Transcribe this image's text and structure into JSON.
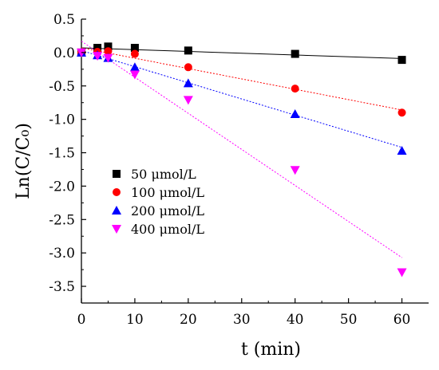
{
  "chart_data": {
    "type": "scatter",
    "xlabel": "t (min)",
    "ylabel": "Ln(C/C₀)",
    "xlim": [
      0,
      65
    ],
    "ylim": [
      -3.75,
      0.5
    ],
    "xticks": [
      0,
      10,
      20,
      30,
      40,
      50,
      60
    ],
    "yticks": [
      0.5,
      0.0,
      -0.5,
      -1.0,
      -1.5,
      -2.0,
      -2.5,
      -3.0,
      -3.5
    ],
    "xtick_labels": [
      "0",
      "10",
      "20",
      "30",
      "40",
      "50",
      "60"
    ],
    "ytick_labels": [
      "0.5",
      "0.0",
      "-0.5",
      "-1.0",
      "-1.5",
      "-2.0",
      "-2.5",
      "-3.0",
      "-3.5"
    ],
    "legend_position": "center-left",
    "series": [
      {
        "name": "50 μmol/L",
        "marker": "square",
        "color": "#000000",
        "line_style": "solid",
        "x": [
          0,
          3,
          5,
          10,
          20,
          40,
          60
        ],
        "y": [
          0.0,
          0.07,
          0.09,
          0.07,
          0.03,
          -0.02,
          -0.11
        ],
        "fit": {
          "x": [
            0,
            60
          ],
          "y": [
            0.07,
            -0.09
          ]
        }
      },
      {
        "name": "100 μmol/L",
        "marker": "circle",
        "color": "#ff0000",
        "line_style": "dotted",
        "x": [
          0,
          3,
          5,
          10,
          20,
          40,
          60
        ],
        "y": [
          0.0,
          0.01,
          0.02,
          -0.02,
          -0.22,
          -0.54,
          -0.9
        ],
        "fit": {
          "x": [
            0,
            60
          ],
          "y": [
            0.07,
            -0.86
          ]
        }
      },
      {
        "name": "200 μmol/L",
        "marker": "triangle-up",
        "color": "#0000ff",
        "line_style": "dotted",
        "x": [
          0,
          3,
          5,
          10,
          20,
          40,
          60
        ],
        "y": [
          0.0,
          -0.04,
          -0.08,
          -0.22,
          -0.46,
          -0.92,
          -1.47
        ],
        "fit": {
          "x": [
            0,
            60
          ],
          "y": [
            0.03,
            -1.42
          ]
        }
      },
      {
        "name": "400 μmol/L",
        "marker": "triangle-down",
        "color": "#ff00ff",
        "line_style": "dotted",
        "x": [
          0,
          3,
          5,
          10,
          20,
          40,
          60
        ],
        "y": [
          0.0,
          -0.05,
          -0.08,
          -0.33,
          -0.71,
          -1.76,
          -3.29
        ],
        "fit": {
          "x": [
            0,
            60
          ],
          "y": [
            0.17,
            -3.07
          ]
        }
      }
    ]
  }
}
